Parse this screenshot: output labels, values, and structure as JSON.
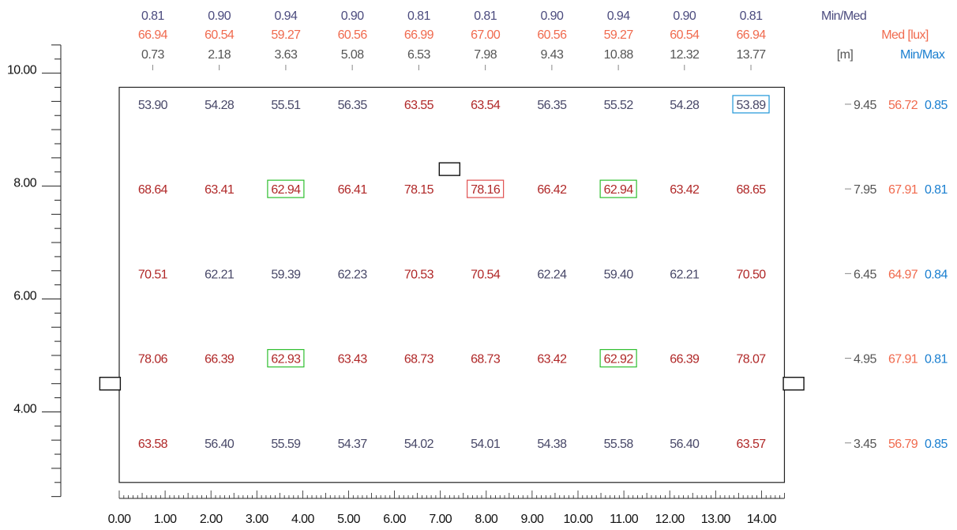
{
  "colors": {
    "minmed": "#4b4b7e",
    "med": "#f06a4e",
    "coord": "#555555",
    "minmax": "#1a7fd0",
    "highlight_green": "#2fbf2f",
    "highlight_red": "#e05050",
    "highlight_blue": "#1e96d8",
    "val_low": "#484868",
    "val_high": "#b02828"
  },
  "legend": {
    "minmed": "Min/Med",
    "med": "Med [lux]",
    "unit": "[m]",
    "minmax": "Min/Max"
  },
  "columns": {
    "minmed": [
      "0.81",
      "0.90",
      "0.94",
      "0.90",
      "0.81",
      "0.81",
      "0.90",
      "0.94",
      "0.90",
      "0.81"
    ],
    "med": [
      "66.94",
      "60.54",
      "59.27",
      "60.56",
      "66.99",
      "67.00",
      "60.56",
      "59.27",
      "60.54",
      "66.94"
    ],
    "x": [
      "0.73",
      "2.18",
      "3.63",
      "5.08",
      "6.53",
      "7.98",
      "9.43",
      "10.88",
      "12.32",
      "13.77"
    ]
  },
  "rows": [
    {
      "y": "9.45",
      "med": "56.72",
      "minmax": "0.85",
      "values": [
        "53.90",
        "54.28",
        "55.51",
        "56.35",
        "63.55",
        "63.54",
        "56.35",
        "55.52",
        "54.28",
        "53.89"
      ]
    },
    {
      "y": "7.95",
      "med": "67.91",
      "minmax": "0.81",
      "values": [
        "68.64",
        "63.41",
        "62.94",
        "66.41",
        "78.15",
        "78.16",
        "66.42",
        "62.94",
        "63.42",
        "68.65"
      ]
    },
    {
      "y": "6.45",
      "med": "64.97",
      "minmax": "0.84",
      "values": [
        "70.51",
        "62.21",
        "59.39",
        "62.23",
        "70.53",
        "70.54",
        "62.24",
        "59.40",
        "62.21",
        "70.50"
      ]
    },
    {
      "y": "4.95",
      "med": "67.91",
      "minmax": "0.81",
      "values": [
        "78.06",
        "66.39",
        "62.93",
        "63.43",
        "68.73",
        "68.73",
        "63.42",
        "62.92",
        "66.39",
        "78.07"
      ]
    },
    {
      "y": "3.45",
      "med": "56.79",
      "minmax": "0.85",
      "values": [
        "63.58",
        "56.40",
        "55.59",
        "54.37",
        "54.02",
        "54.01",
        "54.38",
        "55.58",
        "56.40",
        "63.57"
      ]
    }
  ],
  "highlights": {
    "green": [
      [
        1,
        2
      ],
      [
        1,
        7
      ],
      [
        3,
        2
      ],
      [
        3,
        7
      ]
    ],
    "red": [
      [
        1,
        5
      ]
    ],
    "blue": [
      [
        0,
        9
      ]
    ]
  },
  "y_axis": {
    "min": 2.5,
    "max": 10.5,
    "labels": [
      "10.00",
      "8.00",
      "6.00",
      "4.00"
    ]
  },
  "x_axis": {
    "min": 0,
    "max": 14.5,
    "labels": [
      "0.00",
      "1.00",
      "2.00",
      "3.00",
      "4.00",
      "5.00",
      "6.00",
      "7.00",
      "8.00",
      "9.00",
      "10.00",
      "11.00",
      "12.00",
      "13.00",
      "14.00"
    ]
  },
  "room": {
    "width_m": 14.5,
    "top_m": 9.75,
    "bottom_m": 2.75
  },
  "luminaires": [
    {
      "x_m": 7.2,
      "y_m": 8.3
    },
    {
      "x_m": -0.2,
      "y_m": 4.5
    },
    {
      "x_m": 14.7,
      "y_m": 4.5
    }
  ]
}
